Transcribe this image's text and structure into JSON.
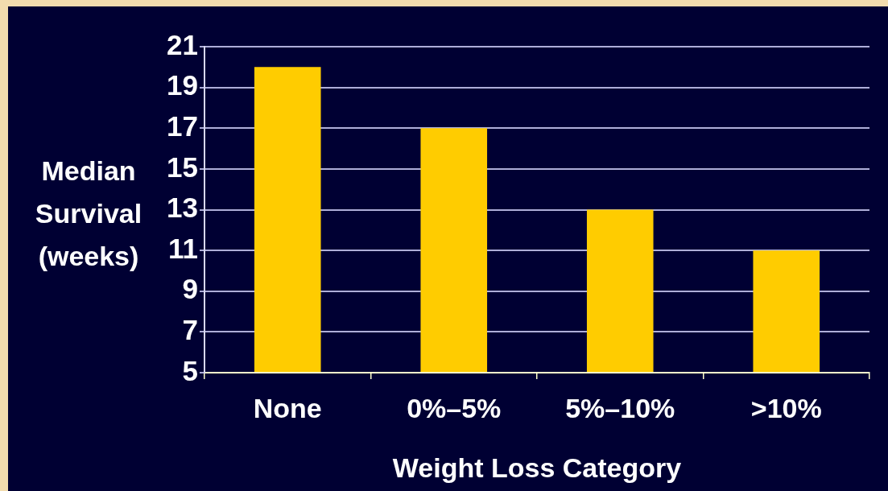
{
  "chart_data": {
    "type": "bar",
    "xlabel": "Weight Loss Category",
    "ylabel": "Median Survival (weeks)",
    "categories": [
      "None",
      "0%–5%",
      "5%–10%",
      ">10%"
    ],
    "values": [
      20,
      17,
      13,
      11
    ],
    "color": "#ffcc00",
    "ylim": [
      5,
      21
    ],
    "yticks": [
      5,
      7,
      9,
      11,
      13,
      15,
      17,
      19,
      21
    ],
    "grid": "y"
  }
}
